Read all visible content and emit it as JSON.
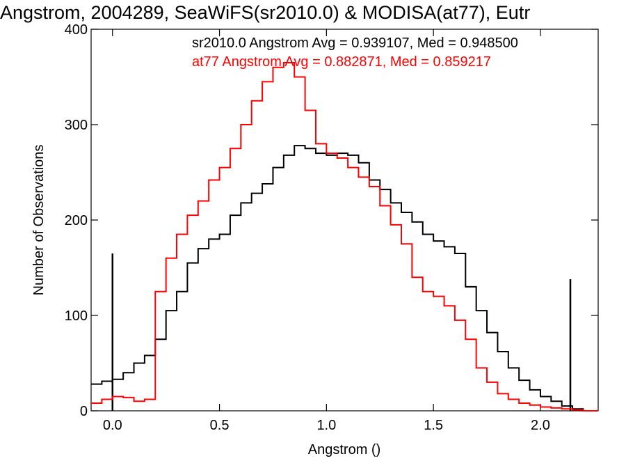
{
  "chart_data": {
    "type": "line",
    "title": "Angstrom, 2004289, SeaWiFS(sr2010.0) & MODISA(at77), Eutr",
    "xlabel": "Angstrom ()",
    "ylabel": "Number of Observations",
    "xlim": [
      -0.1,
      2.27
    ],
    "ylim": [
      0,
      400
    ],
    "xticks": [
      "0.0",
      "0.5",
      "1.0",
      "1.5",
      "2.0"
    ],
    "yticks": [
      "0",
      "100",
      "200",
      "300",
      "400"
    ],
    "annotations": [
      "sr2010.0 Angstrom Avg = 0.939107, Med = 0.948500",
      "at77 Angstrom Avg = 0.882871, Med = 0.859217"
    ],
    "series": [
      {
        "color": "#000000",
        "x": [
          -0.1,
          -0.05,
          0.0,
          0.05,
          0.1,
          0.15,
          0.2,
          0.25,
          0.3,
          0.35,
          0.4,
          0.45,
          0.5,
          0.55,
          0.6,
          0.65,
          0.7,
          0.75,
          0.8,
          0.85,
          0.9,
          0.95,
          1.0,
          1.05,
          1.1,
          1.15,
          1.2,
          1.25,
          1.3,
          1.35,
          1.4,
          1.45,
          1.5,
          1.55,
          1.6,
          1.65,
          1.7,
          1.75,
          1.8,
          1.85,
          1.9,
          1.95,
          2.0,
          2.05,
          2.1,
          2.15,
          2.2,
          2.27
        ],
        "y": [
          28,
          31,
          33,
          40,
          50,
          58,
          75,
          105,
          125,
          155,
          170,
          180,
          185,
          205,
          218,
          228,
          238,
          255,
          268,
          278,
          275,
          270,
          268,
          270,
          268,
          260,
          242,
          232,
          218,
          208,
          198,
          185,
          178,
          172,
          165,
          130,
          105,
          82,
          62,
          45,
          32,
          22,
          15,
          10,
          5,
          2,
          0,
          0
        ],
        "spikes": [
          {
            "x": 0.0,
            "y": 165
          },
          {
            "x": 2.14,
            "y": 138
          }
        ]
      },
      {
        "color": "#ff0000",
        "x": [
          -0.1,
          -0.05,
          0.0,
          0.05,
          0.1,
          0.15,
          0.2,
          0.25,
          0.3,
          0.35,
          0.4,
          0.45,
          0.5,
          0.55,
          0.6,
          0.65,
          0.7,
          0.75,
          0.8,
          0.85,
          0.9,
          0.95,
          1.0,
          1.05,
          1.1,
          1.15,
          1.2,
          1.25,
          1.3,
          1.35,
          1.4,
          1.45,
          1.5,
          1.55,
          1.6,
          1.65,
          1.7,
          1.75,
          1.8,
          1.85,
          1.9,
          1.95,
          2.0,
          2.05,
          2.1,
          2.15,
          2.2,
          2.27
        ],
        "y": [
          8,
          12,
          15,
          14,
          10,
          12,
          125,
          160,
          185,
          205,
          220,
          242,
          255,
          275,
          300,
          325,
          345,
          360,
          365,
          350,
          315,
          280,
          270,
          265,
          255,
          245,
          235,
          215,
          195,
          175,
          140,
          125,
          120,
          110,
          95,
          75,
          45,
          30,
          18,
          12,
          8,
          6,
          4,
          3,
          2,
          1,
          0,
          0
        ]
      }
    ]
  }
}
